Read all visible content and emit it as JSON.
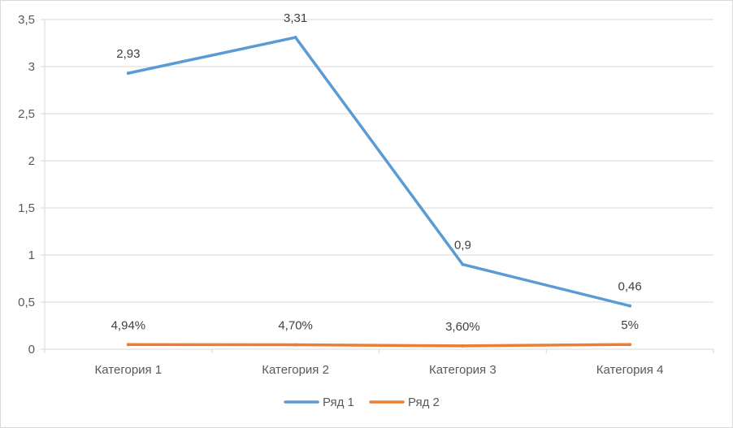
{
  "chart_data": {
    "type": "line",
    "categories": [
      "Категория 1",
      "Категория 2",
      "Категория 3",
      "Категория 4"
    ],
    "series": [
      {
        "name": "Ряд 1",
        "values": [
          2.93,
          3.31,
          0.9,
          0.46
        ],
        "labels": [
          "2,93",
          "3,31",
          "0,9",
          "0,46"
        ],
        "color": "#5b9bd5"
      },
      {
        "name": "Ряд 2",
        "values": [
          0.0494,
          0.047,
          0.036,
          0.05
        ],
        "labels": [
          "4,94%",
          "4,70%",
          "3,60%",
          "5%"
        ],
        "color": "#ed7d31"
      }
    ],
    "yticks": [
      "0",
      "0,5",
      "1",
      "1,5",
      "2",
      "2,5",
      "3",
      "3,5"
    ],
    "ylim": [
      0,
      3.5
    ],
    "grid": true,
    "legend": "bottom"
  }
}
